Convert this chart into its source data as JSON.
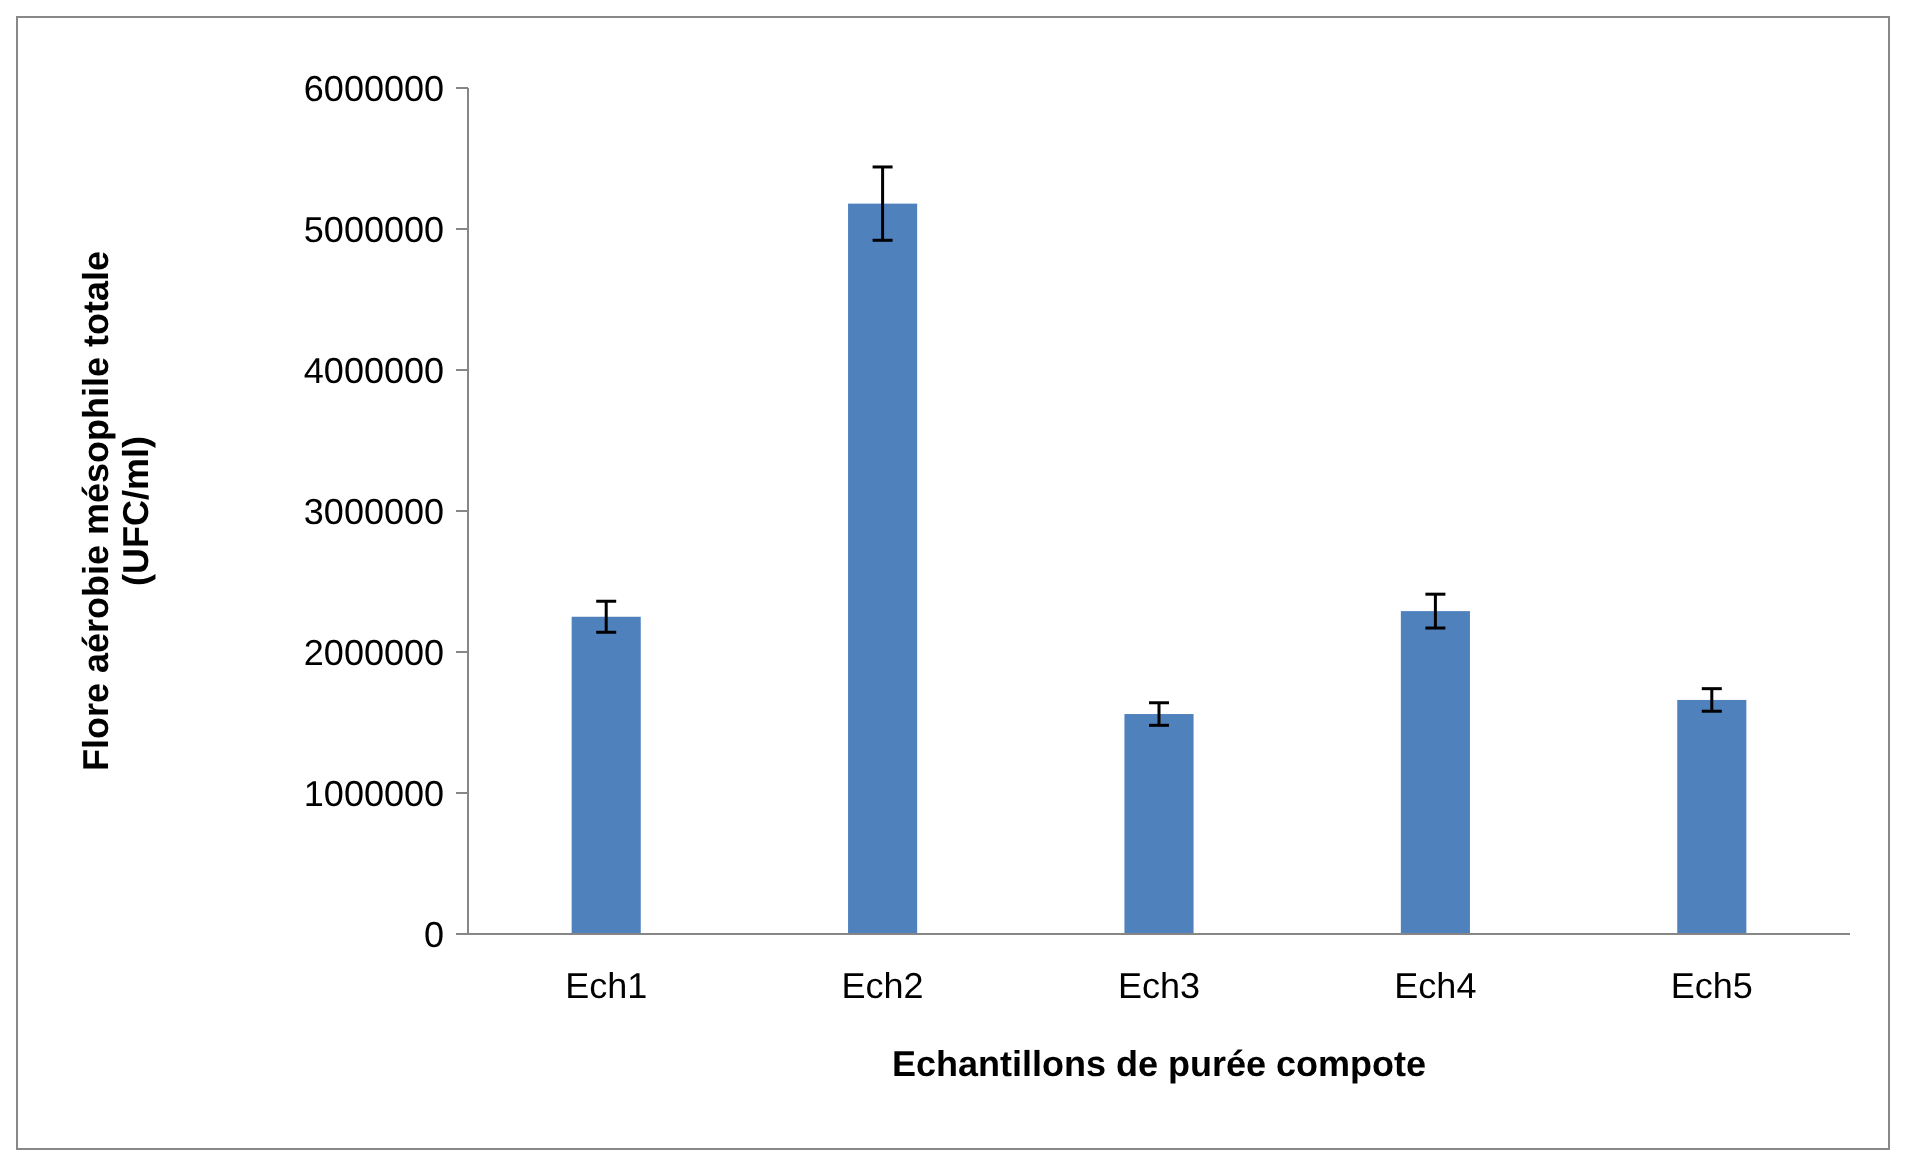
{
  "chart_data": {
    "type": "bar",
    "xlabel": "Echantillons de purée compote",
    "ylabel": "Flore aérobie mésophile totale\n(UFC/ml)",
    "categories": [
      "Ech1",
      "Ech2",
      "Ech3",
      "Ech4",
      "Ech5"
    ],
    "values": [
      2250000,
      5180000,
      1560000,
      2290000,
      1660000
    ],
    "errors": [
      110000,
      260000,
      80000,
      120000,
      80000
    ],
    "color": "#4f81bd",
    "ylim": [
      0,
      6000000
    ],
    "yticks": [
      0,
      1000000,
      2000000,
      3000000,
      4000000,
      5000000,
      6000000
    ],
    "grid": false
  }
}
